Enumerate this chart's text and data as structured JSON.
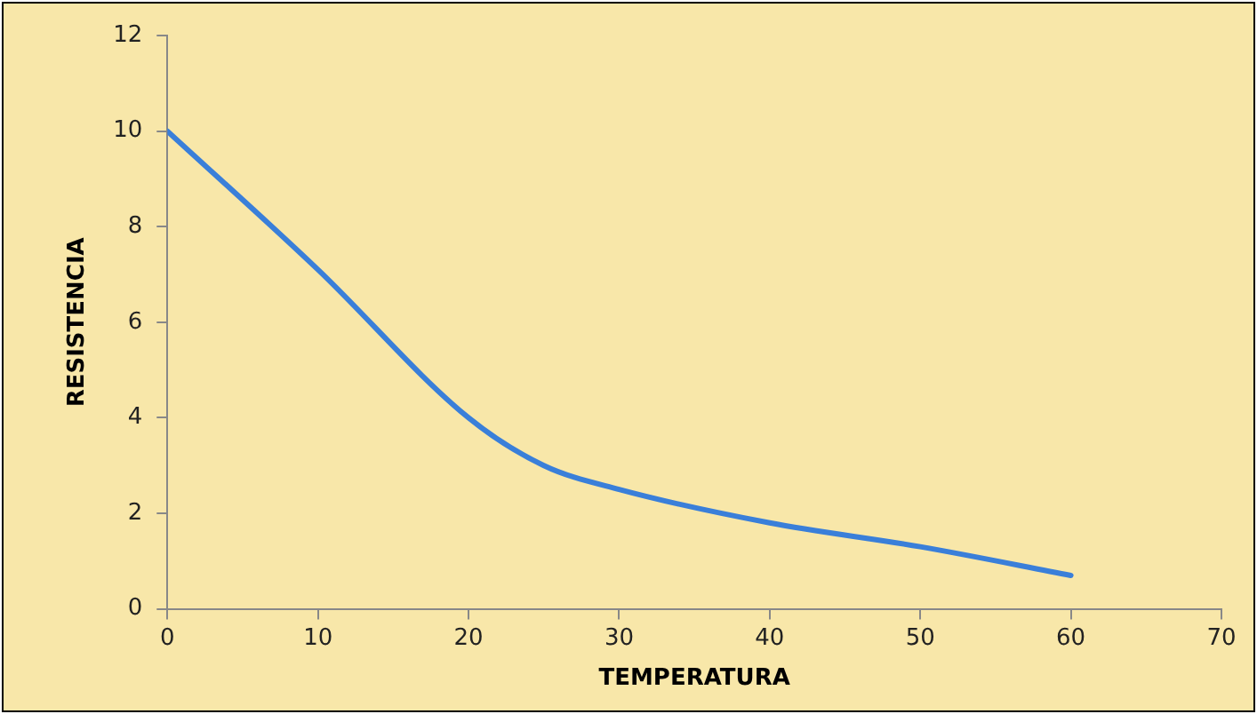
{
  "chart_data": {
    "type": "line",
    "xlabel": "TEMPERATURA",
    "ylabel": "RESISTENCIA",
    "x": [
      0,
      10,
      20,
      25,
      30,
      40,
      50,
      60
    ],
    "series": [
      {
        "color": "#3a7fd9",
        "values": [
          10,
          7.1,
          4,
          3,
          2.5,
          1.8,
          1.3,
          0.7
        ]
      }
    ],
    "xlim": [
      0,
      70
    ],
    "xticks": [
      0,
      10,
      20,
      30,
      40,
      50,
      60,
      70
    ],
    "ylim": [
      0,
      12
    ],
    "yticks": [
      0,
      2,
      4,
      6,
      8,
      10,
      12
    ],
    "grid": false,
    "legend": false,
    "marker": "none",
    "line_style": "solid"
  }
}
